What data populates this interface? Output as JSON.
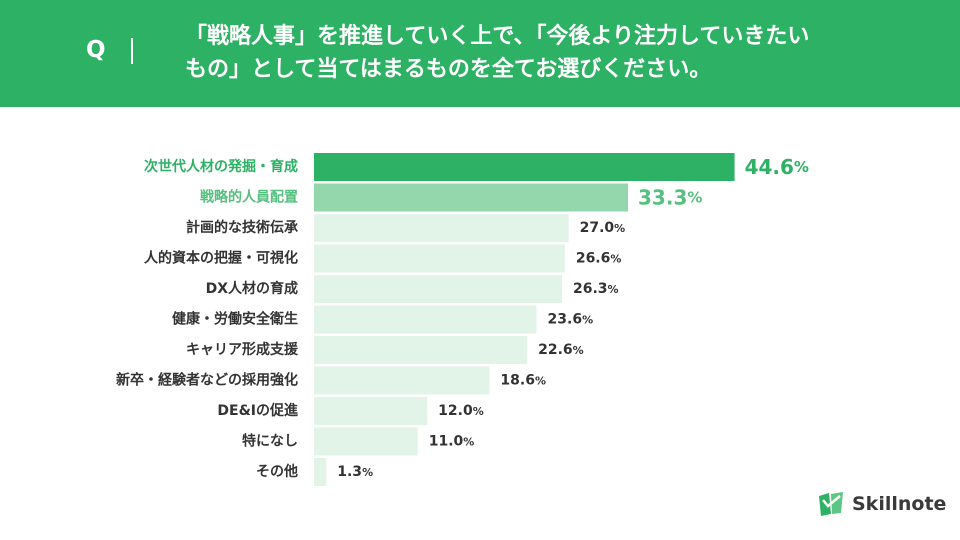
{
  "question": {
    "mark": "Q",
    "text": "「戦略人事」を推進していく上で、「今後より注力していきたい\nもの」として当てはまるものを全てお選びください。"
  },
  "brand": {
    "name": "Skillnote"
  },
  "colors": {
    "header": "#2db164",
    "bar_top": "#2db164",
    "bar_second": "#95d7ad",
    "bar_rest": "#e2f3e7",
    "label_top": "#2db164",
    "label_second": "#55c07f",
    "text_dark": "#333333"
  },
  "chart_data": {
    "type": "bar",
    "orientation": "horizontal",
    "unit": "%",
    "categories": [
      "次世代人材の発掘・育成",
      "戦略的人員配置",
      "計画的な技術伝承",
      "人的資本の把握・可視化",
      "DX人材の育成",
      "健康・労働安全衛生",
      "キャリア形成支援",
      "新卒・経験者などの採用強化",
      "DE&Iの促進",
      "特になし",
      "その他"
    ],
    "values": [
      44.6,
      33.3,
      27.0,
      26.6,
      26.3,
      23.6,
      22.6,
      18.6,
      12.0,
      11.0,
      1.3
    ],
    "value_labels": [
      "44.6",
      "33.3",
      "27.0",
      "26.6",
      "26.3",
      "23.6",
      "22.6",
      "18.6",
      "12.0",
      "11.0",
      "1.3"
    ],
    "grid": false,
    "legend": "none"
  }
}
